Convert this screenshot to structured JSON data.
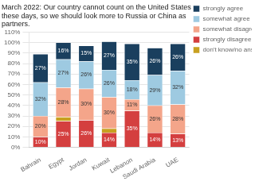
{
  "chart_data": {
    "type": "bar",
    "title": "March 2022: Our country cannot count on the United States\nthese days, so we should look more to Russia or China as\npartners.",
    "categories": [
      "Bahrain",
      "Egypt",
      "Jordan",
      "Kuwait",
      "Lebanon",
      "Saudi Arabia",
      "UAE"
    ],
    "series": [
      {
        "name": "strongly agree",
        "color": "#1a3f5e",
        "values": [
          27,
          16,
          15,
          27,
          35,
          26,
          26
        ],
        "value_labels": [
          "27%",
          "16%",
          "15%",
          "27%",
          "35%",
          "26%",
          "26%"
        ]
      },
      {
        "name": "somewhat agree",
        "color": "#9ecae1",
        "values": [
          32,
          27,
          26,
          26,
          18,
          29,
          32
        ],
        "value_labels": [
          "32%",
          "27%",
          "26%",
          "26%",
          "18%",
          "29%",
          "32%"
        ]
      },
      {
        "name": "somewhat disagree",
        "color": "#f4a58a",
        "values": [
          20,
          28,
          30,
          30,
          11,
          26,
          28
        ],
        "value_labels": [
          "20%",
          "28%",
          "30%",
          "30%",
          "11%",
          "26%",
          "28%"
        ]
      },
      {
        "name": "strongly disagree",
        "color": "#d43f3f",
        "values": [
          10,
          25,
          26,
          14,
          35,
          14,
          13
        ],
        "value_labels": [
          "10%",
          "25%",
          "26%",
          "14%",
          "35%",
          "14%",
          "13%"
        ]
      },
      {
        "name": "don't know/no answer",
        "color": "#c8a020",
        "values": [
          0,
          4,
          0,
          4,
          0,
          0,
          0
        ],
        "value_labels": [
          null,
          null,
          null,
          null,
          null,
          null,
          null
        ]
      }
    ],
    "stacked": true,
    "data_labels": true,
    "legend": "right",
    "grid": true,
    "ylim": [
      0,
      110
    ],
    "yticks": [
      {
        "value": 0,
        "label": "0%"
      },
      {
        "value": 10,
        "label": "10%"
      },
      {
        "value": 20,
        "label": "20%"
      },
      {
        "value": 30,
        "label": "30%"
      },
      {
        "value": 40,
        "label": "40%"
      },
      {
        "value": 50,
        "label": "50%"
      },
      {
        "value": 60,
        "label": "60%"
      },
      {
        "value": 70,
        "label": "70%"
      },
      {
        "value": 80,
        "label": "80%"
      },
      {
        "value": 90,
        "label": "90%"
      },
      {
        "value": 100,
        "label": "100%"
      },
      {
        "value": 110,
        "label": "110%"
      }
    ]
  }
}
